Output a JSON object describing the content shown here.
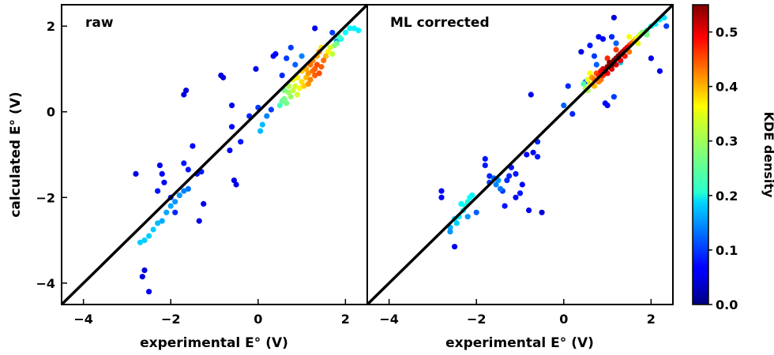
{
  "chart_data": [
    {
      "type": "scatter",
      "panel_label": "raw",
      "xlabel": "experimental E° (V)",
      "ylabel": "calculated E° (V)",
      "xlim": [
        -4.5,
        2.5
      ],
      "ylim": [
        -4.5,
        2.5
      ],
      "xticks": [
        -4,
        -2,
        0,
        2
      ],
      "yticks": [
        -4,
        -2,
        0,
        2
      ],
      "reference_line": "y = x",
      "color_by": "KDE density",
      "points": [
        [
          -2.8,
          -1.45,
          0.05
        ],
        [
          -2.6,
          -3.7,
          0.05
        ],
        [
          -2.65,
          -3.85,
          0.05
        ],
        [
          -2.5,
          -4.2,
          0.06
        ],
        [
          -2.7,
          -3.05,
          0.18
        ],
        [
          -2.6,
          -3.0,
          0.18
        ],
        [
          -2.5,
          -2.9,
          0.18
        ],
        [
          -2.4,
          -2.75,
          0.18
        ],
        [
          -2.3,
          -2.6,
          0.17
        ],
        [
          -2.2,
          -2.55,
          0.16
        ],
        [
          -2.1,
          -2.35,
          0.16
        ],
        [
          -2.0,
          -2.2,
          0.16
        ],
        [
          -1.9,
          -2.1,
          0.15
        ],
        [
          -1.8,
          -1.95,
          0.15
        ],
        [
          -1.7,
          -1.85,
          0.14
        ],
        [
          -1.6,
          -1.8,
          0.13
        ],
        [
          -2.25,
          -1.25,
          0.06
        ],
        [
          -2.2,
          -1.45,
          0.07
        ],
        [
          -2.15,
          -1.65,
          0.07
        ],
        [
          -2.3,
          -1.85,
          0.08
        ],
        [
          -2.0,
          -2.0,
          0.09
        ],
        [
          -1.9,
          -2.35,
          0.09
        ],
        [
          -1.7,
          -1.2,
          0.08
        ],
        [
          -1.6,
          -1.35,
          0.08
        ],
        [
          -1.5,
          -0.8,
          0.07
        ],
        [
          -1.4,
          -1.45,
          0.08
        ],
        [
          -1.3,
          -1.4,
          0.08
        ],
        [
          -1.35,
          -2.55,
          0.06
        ],
        [
          -1.25,
          -2.15,
          0.06
        ],
        [
          -1.7,
          0.4,
          0.05
        ],
        [
          -1.65,
          0.5,
          0.05
        ],
        [
          -0.85,
          0.85,
          0.05
        ],
        [
          -0.8,
          0.8,
          0.05
        ],
        [
          -0.6,
          0.15,
          0.06
        ],
        [
          -0.6,
          -0.35,
          0.07
        ],
        [
          -0.4,
          -0.7,
          0.08
        ],
        [
          -0.55,
          -1.6,
          0.06
        ],
        [
          -0.5,
          -1.7,
          0.06
        ],
        [
          -0.65,
          -0.9,
          0.07
        ],
        [
          -0.2,
          -0.1,
          0.09
        ],
        [
          0.0,
          0.1,
          0.1
        ],
        [
          -0.05,
          1.0,
          0.06
        ],
        [
          0.3,
          0.05,
          0.1
        ],
        [
          0.2,
          -0.1,
          0.14
        ],
        [
          0.1,
          -0.3,
          0.17
        ],
        [
          0.05,
          -0.45,
          0.17
        ],
        [
          0.35,
          1.3,
          0.07
        ],
        [
          0.4,
          1.35,
          0.07
        ],
        [
          0.55,
          0.85,
          0.09
        ],
        [
          0.65,
          1.25,
          0.1
        ],
        [
          0.75,
          1.5,
          0.1
        ],
        [
          0.85,
          1.1,
          0.12
        ],
        [
          1.0,
          1.3,
          0.14
        ],
        [
          1.3,
          1.95,
          0.06
        ],
        [
          1.7,
          1.85,
          0.1
        ],
        [
          1.8,
          1.65,
          0.15
        ],
        [
          0.5,
          0.15,
          0.24
        ],
        [
          0.55,
          0.25,
          0.26
        ],
        [
          0.6,
          0.3,
          0.27
        ],
        [
          0.65,
          0.2,
          0.27
        ],
        [
          0.7,
          0.45,
          0.29
        ],
        [
          0.75,
          0.35,
          0.29
        ],
        [
          0.8,
          0.5,
          0.31
        ],
        [
          0.85,
          0.6,
          0.32
        ],
        [
          0.9,
          0.4,
          0.32
        ],
        [
          0.95,
          0.55,
          0.34
        ],
        [
          1.0,
          0.7,
          0.36
        ],
        [
          1.05,
          0.6,
          0.37
        ],
        [
          1.1,
          0.8,
          0.38
        ],
        [
          1.15,
          0.9,
          0.4
        ],
        [
          1.2,
          0.75,
          0.41
        ],
        [
          1.25,
          0.95,
          0.42
        ],
        [
          1.3,
          1.0,
          0.43
        ],
        [
          1.35,
          1.1,
          0.44
        ],
        [
          1.4,
          0.9,
          0.44
        ],
        [
          1.45,
          1.05,
          0.43
        ],
        [
          1.5,
          1.2,
          0.42
        ],
        [
          1.2,
          1.1,
          0.42
        ],
        [
          1.25,
          1.2,
          0.41
        ],
        [
          1.35,
          1.3,
          0.39
        ],
        [
          1.1,
          1.0,
          0.39
        ],
        [
          1.0,
          0.95,
          0.37
        ],
        [
          0.9,
          0.8,
          0.35
        ],
        [
          1.55,
          1.3,
          0.38
        ],
        [
          1.6,
          1.4,
          0.35
        ],
        [
          1.65,
          1.5,
          0.32
        ],
        [
          1.7,
          1.35,
          0.31
        ],
        [
          1.75,
          1.55,
          0.28
        ],
        [
          1.8,
          1.6,
          0.26
        ],
        [
          1.85,
          1.75,
          0.24
        ],
        [
          1.9,
          1.7,
          0.22
        ],
        [
          2.0,
          1.85,
          0.21
        ],
        [
          2.1,
          1.95,
          0.2
        ],
        [
          2.2,
          1.95,
          0.2
        ],
        [
          2.3,
          1.9,
          0.2
        ],
        [
          1.45,
          1.5,
          0.36
        ],
        [
          1.4,
          1.4,
          0.4
        ],
        [
          0.8,
          0.75,
          0.33
        ],
        [
          0.7,
          0.6,
          0.3
        ],
        [
          0.6,
          0.5,
          0.27
        ],
        [
          1.15,
          0.65,
          0.4
        ],
        [
          1.3,
          0.85,
          0.43
        ]
      ]
    },
    {
      "type": "scatter",
      "panel_label": "ML corrected",
      "xlabel": "experimental E° (V)",
      "ylabel": "",
      "xlim": [
        -4.5,
        2.5
      ],
      "ylim": [
        -4.5,
        2.5
      ],
      "xticks": [
        -4,
        -2,
        0,
        2
      ],
      "reference_line": "y = x",
      "color_by": "KDE density",
      "points": [
        [
          -2.8,
          -1.85,
          0.06
        ],
        [
          -2.8,
          -2.0,
          0.07
        ],
        [
          -2.6,
          -2.7,
          0.16
        ],
        [
          -2.6,
          -2.8,
          0.15
        ],
        [
          -2.5,
          -2.5,
          0.19
        ],
        [
          -2.4,
          -2.45,
          0.2
        ],
        [
          -2.3,
          -2.3,
          0.21
        ],
        [
          -2.25,
          -2.2,
          0.22
        ],
        [
          -2.2,
          -2.1,
          0.22
        ],
        [
          -2.15,
          -2.0,
          0.21
        ],
        [
          -2.35,
          -2.15,
          0.21
        ],
        [
          -2.1,
          -1.95,
          0.2
        ],
        [
          -2.45,
          -2.6,
          0.18
        ],
        [
          -2.5,
          -3.15,
          0.06
        ],
        [
          -2.2,
          -2.45,
          0.15
        ],
        [
          -2.0,
          -2.35,
          0.12
        ],
        [
          -1.8,
          -1.1,
          0.08
        ],
        [
          -1.8,
          -1.25,
          0.08
        ],
        [
          -1.7,
          -1.5,
          0.09
        ],
        [
          -1.7,
          -1.65,
          0.1
        ],
        [
          -1.6,
          -1.55,
          0.12
        ],
        [
          -1.55,
          -1.7,
          0.14
        ],
        [
          -1.5,
          -1.6,
          0.15
        ],
        [
          -1.45,
          -1.8,
          0.13
        ],
        [
          -1.4,
          -1.85,
          0.1
        ],
        [
          -1.3,
          -1.6,
          0.09
        ],
        [
          -1.35,
          -2.2,
          0.08
        ],
        [
          -1.2,
          -1.3,
          0.08
        ],
        [
          -1.1,
          -1.45,
          0.08
        ],
        [
          -1.1,
          -2.0,
          0.07
        ],
        [
          -1.25,
          -1.5,
          0.09
        ],
        [
          -1.0,
          -1.9,
          0.08
        ],
        [
          -0.95,
          -1.7,
          0.07
        ],
        [
          -0.85,
          -1.0,
          0.07
        ],
        [
          -0.8,
          -2.3,
          0.06
        ],
        [
          -0.75,
          0.4,
          0.06
        ],
        [
          -0.7,
          -0.95,
          0.07
        ],
        [
          -0.6,
          -1.05,
          0.08
        ],
        [
          -0.6,
          -0.7,
          0.09
        ],
        [
          -0.5,
          -2.35,
          0.05
        ],
        [
          0.0,
          0.15,
          0.12
        ],
        [
          0.1,
          0.6,
          0.09
        ],
        [
          0.2,
          -0.05,
          0.09
        ],
        [
          0.4,
          1.4,
          0.06
        ],
        [
          0.5,
          0.7,
          0.12
        ],
        [
          0.6,
          1.55,
          0.08
        ],
        [
          0.7,
          1.3,
          0.1
        ],
        [
          0.75,
          1.1,
          0.12
        ],
        [
          0.8,
          1.75,
          0.07
        ],
        [
          0.9,
          1.7,
          0.07
        ],
        [
          0.95,
          0.2,
          0.07
        ],
        [
          1.0,
          0.15,
          0.06
        ],
        [
          1.1,
          1.75,
          0.09
        ],
        [
          1.15,
          0.35,
          0.1
        ],
        [
          1.3,
          1.15,
          0.18
        ],
        [
          1.15,
          2.2,
          0.05
        ],
        [
          1.2,
          1.6,
          0.12
        ],
        [
          2.0,
          1.25,
          0.06
        ],
        [
          2.2,
          0.95,
          0.06
        ],
        [
          2.35,
          2.0,
          0.1
        ],
        [
          0.45,
          0.65,
          0.25
        ],
        [
          0.5,
          0.55,
          0.3
        ],
        [
          0.55,
          0.75,
          0.33
        ],
        [
          0.6,
          0.65,
          0.36
        ],
        [
          0.65,
          0.8,
          0.4
        ],
        [
          0.7,
          0.75,
          0.42
        ],
        [
          0.75,
          0.9,
          0.44
        ],
        [
          0.8,
          0.85,
          0.46
        ],
        [
          0.85,
          0.95,
          0.48
        ],
        [
          0.9,
          1.0,
          0.5
        ],
        [
          0.95,
          0.95,
          0.52
        ],
        [
          1.0,
          1.05,
          0.54
        ],
        [
          1.05,
          1.15,
          0.55
        ],
        [
          1.1,
          1.1,
          0.55
        ],
        [
          1.15,
          1.2,
          0.55
        ],
        [
          1.2,
          1.25,
          0.54
        ],
        [
          1.25,
          1.3,
          0.55
        ],
        [
          1.3,
          1.35,
          0.54
        ],
        [
          1.35,
          1.4,
          0.52
        ],
        [
          1.4,
          1.45,
          0.5
        ],
        [
          1.45,
          1.5,
          0.48
        ],
        [
          1.5,
          1.55,
          0.45
        ],
        [
          1.55,
          1.6,
          0.42
        ],
        [
          1.6,
          1.65,
          0.38
        ],
        [
          1.65,
          1.7,
          0.35
        ],
        [
          1.7,
          1.75,
          0.32
        ],
        [
          1.75,
          1.8,
          0.3
        ],
        [
          1.8,
          1.85,
          0.28
        ],
        [
          1.9,
          1.9,
          0.25
        ],
        [
          2.0,
          2.0,
          0.22
        ],
        [
          2.1,
          2.05,
          0.2
        ],
        [
          2.2,
          2.15,
          0.2
        ],
        [
          2.3,
          2.2,
          0.19
        ],
        [
          0.7,
          0.6,
          0.38
        ],
        [
          0.8,
          0.7,
          0.41
        ],
        [
          0.9,
          0.85,
          0.46
        ],
        [
          1.0,
          0.9,
          0.48
        ],
        [
          1.1,
          1.0,
          0.5
        ],
        [
          1.2,
          1.1,
          0.5
        ],
        [
          1.3,
          1.2,
          0.49
        ],
        [
          1.4,
          1.3,
          0.47
        ],
        [
          1.5,
          1.4,
          0.42
        ],
        [
          0.6,
          0.9,
          0.34
        ],
        [
          1.0,
          1.25,
          0.46
        ],
        [
          1.2,
          1.45,
          0.45
        ],
        [
          1.5,
          1.75,
          0.34
        ],
        [
          1.7,
          1.6,
          0.33
        ],
        [
          1.9,
          1.8,
          0.27
        ],
        [
          0.55,
          0.5,
          0.3
        ],
        [
          0.85,
          0.75,
          0.42
        ]
      ]
    }
  ],
  "colorbar": {
    "label": "KDE density",
    "min": 0.0,
    "max": 0.55,
    "ticks": [
      0.0,
      0.1,
      0.2,
      0.3,
      0.4,
      0.5
    ],
    "tick_labels": [
      "0.0",
      "0.1",
      "0.2",
      "0.3",
      "0.4",
      "0.5"
    ],
    "colormap": "jet"
  }
}
